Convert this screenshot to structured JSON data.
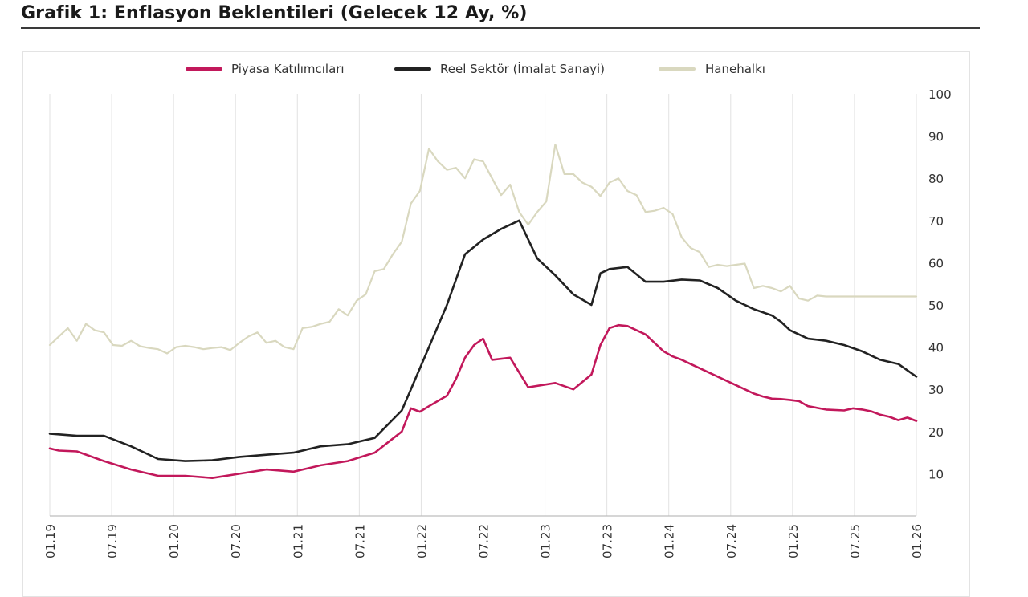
{
  "page": {
    "title": "Grafik 1: Enflasyon Beklentileri (Gelecek 12 Ay, %)"
  },
  "chart_data": {
    "type": "line",
    "title": "Grafik 1: Enflasyon Beklentileri (Gelecek 12 Ay, %)",
    "xlabel": "",
    "ylabel": "",
    "ylim": [
      0,
      100
    ],
    "yticks": [
      10,
      20,
      30,
      40,
      50,
      60,
      70,
      80,
      90,
      100
    ],
    "x_tick_labels": [
      "01.19",
      "07.19",
      "01.20",
      "07.20",
      "01.21",
      "07.21",
      "01.22",
      "07.22",
      "01.23",
      "07.23",
      "01.24",
      "07.24",
      "01.25",
      "07.25",
      "01.26"
    ],
    "x_start": "01.19",
    "x_end": "01.26",
    "grid": "vertical",
    "legend_position": "top",
    "y_axis_position": "right",
    "series": [
      {
        "name": "Piyasa Katılımcıları",
        "color": "#c2185b",
        "x": [
          0,
          1,
          3,
          6,
          9,
          12,
          15,
          18,
          21,
          24,
          27,
          30,
          33,
          36,
          39,
          40,
          41,
          42,
          44,
          45,
          46,
          47,
          48,
          49,
          51,
          53,
          56,
          58,
          60,
          61,
          62,
          63,
          64,
          66,
          68,
          69,
          70,
          72,
          74,
          76,
          77,
          78,
          79,
          80,
          81,
          82,
          83,
          84,
          86,
          88,
          89,
          90,
          91,
          92,
          93,
          94,
          95,
          96
        ],
        "values": [
          16,
          15.5,
          15.3,
          13,
          11,
          9.5,
          9.5,
          9,
          10,
          11,
          10.5,
          12,
          13,
          15,
          20,
          25.5,
          24.7,
          26,
          28.5,
          32.5,
          37.5,
          40.5,
          42,
          37,
          37.5,
          30.5,
          31.5,
          30,
          33.5,
          40.5,
          44.5,
          45.2,
          45,
          43,
          39,
          37.8,
          37,
          35,
          33,
          31,
          30,
          29,
          28.3,
          27.8,
          27.7,
          27.5,
          27.2,
          26,
          25.2,
          25,
          25.5,
          25.2,
          24.8,
          24,
          23.5,
          22.7,
          23.3,
          22.5
        ]
      },
      {
        "name": "Reel Sektör (İmalat Sanayi)",
        "color": "#222222",
        "x": [
          0,
          3,
          6,
          9,
          12,
          15,
          18,
          21,
          24,
          27,
          30,
          33,
          36,
          39,
          40,
          42,
          44,
          46,
          48,
          50,
          52,
          54,
          56,
          58,
          60,
          61,
          62,
          64,
          66,
          68,
          70,
          72,
          74,
          76,
          78,
          80,
          81,
          82,
          84,
          86,
          88,
          90,
          92,
          94,
          96
        ],
        "values": [
          19.5,
          19,
          19,
          16.5,
          13.5,
          13,
          13.2,
          14,
          14.5,
          15,
          16.5,
          17,
          18.5,
          25,
          30,
          40,
          50,
          62,
          65.5,
          68,
          70,
          61,
          57,
          52.5,
          50,
          57.5,
          58.5,
          59,
          55.5,
          55.5,
          56,
          55.8,
          54,
          51,
          49,
          47.5,
          46,
          44,
          42,
          41.5,
          40.5,
          39,
          37,
          36,
          33
        ]
      },
      {
        "name": "Hanehalkı",
        "color": "#d9d8bf",
        "x": [
          0,
          1,
          2,
          3,
          4,
          5,
          6,
          7,
          8,
          9,
          10,
          11,
          12,
          13,
          14,
          15,
          16,
          17,
          18,
          19,
          20,
          21,
          22,
          23,
          24,
          25,
          26,
          27,
          28,
          29,
          30,
          31,
          32,
          33,
          34,
          35,
          36,
          37,
          38,
          39,
          40,
          41,
          42,
          43,
          44,
          45,
          46,
          47,
          48,
          49,
          50,
          51,
          52,
          53,
          54,
          55,
          56,
          57,
          58,
          59,
          60,
          61,
          62,
          63,
          64,
          65,
          66,
          67,
          68,
          69,
          70,
          71,
          72,
          73,
          74,
          75,
          76,
          77,
          78,
          79,
          80,
          81,
          82,
          83,
          84,
          85,
          86,
          87,
          88,
          89,
          90,
          91,
          92,
          93,
          94,
          95,
          96
        ],
        "values": [
          40.5,
          42.5,
          44.5,
          41.5,
          45.5,
          44,
          43.5,
          40.5,
          40.3,
          41.5,
          40.2,
          39.8,
          39.5,
          38.5,
          40,
          40.3,
          40,
          39.5,
          39.8,
          40,
          39.3,
          41,
          42.5,
          43.5,
          41,
          41.5,
          40,
          39.5,
          44.5,
          44.8,
          45.5,
          46,
          49,
          47.5,
          51,
          52.5,
          58,
          58.5,
          62,
          65,
          74,
          77,
          87,
          84,
          82,
          82.5,
          80,
          84.5,
          84,
          80,
          76,
          78.5,
          72,
          69,
          72,
          74.5,
          88,
          81,
          81,
          79,
          78,
          75.8,
          79,
          80,
          77,
          76,
          72,
          72.3,
          73,
          71.5,
          66,
          63.5,
          62.5,
          59,
          59.5,
          59.2,
          59.5,
          59.8,
          54,
          54.5,
          54,
          53.2,
          54.5,
          51.5,
          51,
          52.2,
          52,
          52,
          52,
          52,
          52,
          52,
          52,
          52,
          52,
          52,
          52
        ]
      }
    ]
  }
}
